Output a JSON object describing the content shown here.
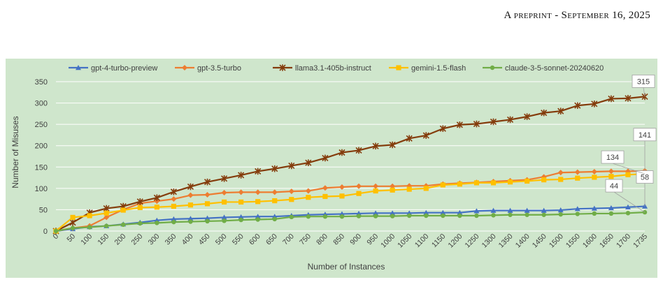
{
  "page_header": {
    "running_title": "A preprint - September 16, 2025"
  },
  "colors": {
    "plot_background": "#cfe6cc",
    "grid": "#ffffff",
    "callout_fill": "#ffffff",
    "callout_border": "#a0a0a0"
  },
  "chart_data": {
    "type": "line",
    "title": "",
    "xlabel": "Number of Instances",
    "ylabel": "Number of Misuses",
    "ylim": [
      0,
      350
    ],
    "yticks": [
      0,
      50,
      100,
      150,
      200,
      250,
      300,
      350
    ],
    "grid": "horizontal",
    "legend_position": "top",
    "x": [
      0,
      50,
      100,
      150,
      200,
      250,
      300,
      350,
      400,
      450,
      500,
      550,
      600,
      650,
      700,
      750,
      800,
      850,
      900,
      950,
      1000,
      1050,
      1100,
      1150,
      1200,
      1250,
      1300,
      1350,
      1400,
      1450,
      1500,
      1550,
      1600,
      1650,
      1700,
      1735
    ],
    "series": [
      {
        "name": "gpt-4-turbo-preview",
        "color": "#4472c4",
        "marker": "triangle",
        "values": [
          0,
          5,
          10,
          12,
          16,
          20,
          25,
          28,
          29,
          30,
          32,
          33,
          34,
          34,
          36,
          38,
          39,
          40,
          41,
          42,
          42,
          42,
          43,
          43,
          43,
          47,
          48,
          48,
          48,
          48,
          49,
          52,
          53,
          54,
          56,
          58
        ],
        "end_label": "58"
      },
      {
        "name": "gpt-3.5-turbo",
        "color": "#ed7d31",
        "marker": "diamond",
        "values": [
          0,
          7,
          12,
          32,
          50,
          65,
          70,
          75,
          84,
          85,
          90,
          91,
          91,
          91,
          93,
          94,
          101,
          103,
          105,
          105,
          105,
          106,
          106,
          110,
          112,
          114,
          116,
          118,
          120,
          127,
          137,
          138,
          139,
          140,
          140,
          141
        ],
        "end_label": "141"
      },
      {
        "name": "llama3.1-405b-instruct",
        "color": "#843c0c",
        "marker": "star",
        "values": [
          0,
          20,
          43,
          53,
          58,
          69,
          78,
          92,
          104,
          115,
          123,
          131,
          140,
          146,
          153,
          160,
          171,
          184,
          189,
          199,
          202,
          217,
          224,
          240,
          249,
          251,
          256,
          261,
          268,
          277,
          281,
          294,
          298,
          310,
          311,
          315
        ],
        "end_label": "315"
      },
      {
        "name": "gemini-1.5-flash",
        "color": "#ffc000",
        "marker": "square",
        "values": [
          0,
          32,
          36,
          42,
          49,
          55,
          56,
          58,
          61,
          64,
          68,
          68,
          69,
          71,
          74,
          79,
          81,
          82,
          88,
          94,
          96,
          98,
          100,
          108,
          110,
          113,
          113,
          115,
          117,
          120,
          121,
          124,
          126,
          128,
          132,
          134
        ],
        "end_label": "134"
      },
      {
        "name": "claude-3-5-sonnet-20240620",
        "color": "#70ad47",
        "marker": "circle",
        "values": [
          0,
          7,
          9,
          12,
          15,
          18,
          19,
          21,
          22,
          23,
          24,
          26,
          27,
          28,
          33,
          34,
          34,
          34,
          35,
          35,
          35,
          36,
          36,
          36,
          36,
          36,
          37,
          38,
          38,
          38,
          39,
          40,
          41,
          41,
          42,
          44
        ],
        "end_label": "44"
      }
    ]
  }
}
